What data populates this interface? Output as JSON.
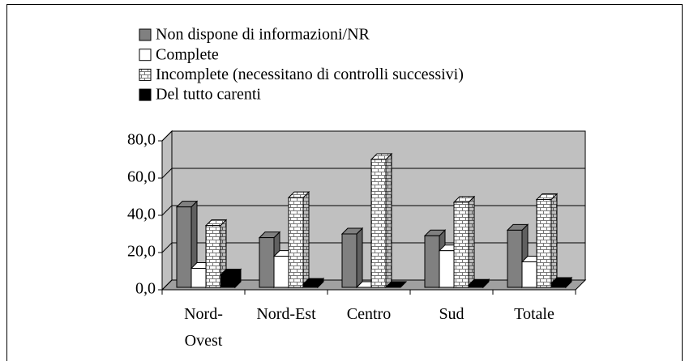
{
  "chart_data": {
    "type": "bar3d",
    "categories": [
      "Nord-\nOvest",
      "Nord-Est",
      "Centro",
      "Sud",
      "Totale"
    ],
    "series": [
      {
        "name": "Non dispone di informazioni/NR",
        "color": "#808080",
        "values": [
          44.5,
          28.0,
          30.0,
          29.0,
          32.0
        ]
      },
      {
        "name": "Complete",
        "color": "#ffffff",
        "values": [
          11.5,
          18.0,
          0.5,
          21.0,
          15.0
        ]
      },
      {
        "name": "Incomplete (necessitano di controlli successivi)",
        "color": "#ffffff",
        "pattern": "bricks",
        "values": [
          34.5,
          49.5,
          70.0,
          47.0,
          48.5
        ]
      },
      {
        "name": "Del tutto carenti",
        "color": "#000000",
        "values": [
          8.0,
          3.0,
          0.0,
          2.5,
          3.5
        ]
      }
    ],
    "ylim": [
      0,
      80
    ],
    "yticks": [
      {
        "value": 0,
        "label": "0,0"
      },
      {
        "value": 20,
        "label": "20,0"
      },
      {
        "value": 40,
        "label": "40,0"
      },
      {
        "value": 60,
        "label": "60,0"
      },
      {
        "value": 80,
        "label": "80,0"
      }
    ],
    "grid": true
  }
}
